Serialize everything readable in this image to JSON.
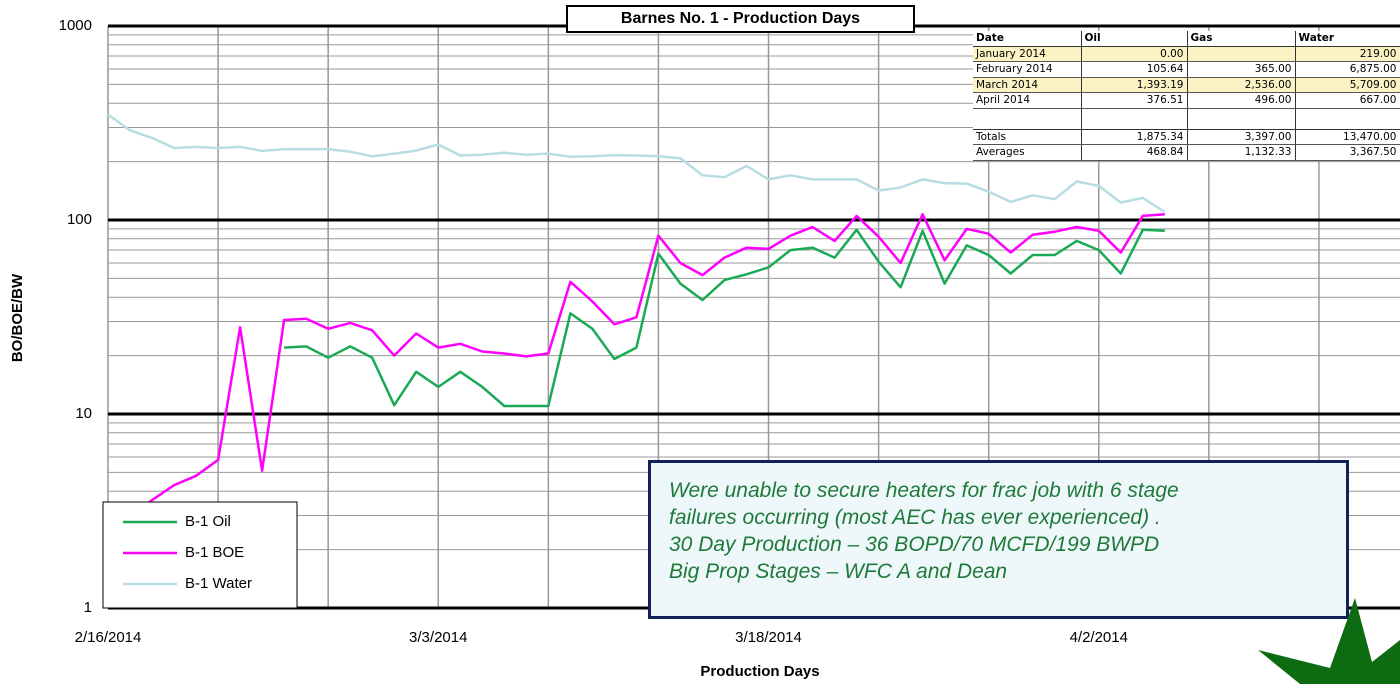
{
  "chart_data": {
    "type": "line",
    "title": "Barnes No. 1 - Production Days",
    "xlabel": "Production Days",
    "ylabel": "BO/BOE/BW",
    "log_y": true,
    "grid": true,
    "legend": "lower left",
    "x": [
      "2014-02-16",
      "2014-02-17",
      "2014-02-18",
      "2014-02-19",
      "2014-02-20",
      "2014-02-21",
      "2014-02-22",
      "2014-02-23",
      "2014-02-24",
      "2014-02-25",
      "2014-02-26",
      "2014-02-27",
      "2014-02-28",
      "2014-03-01",
      "2014-03-02",
      "2014-03-03",
      "2014-03-04",
      "2014-03-05",
      "2014-03-06",
      "2014-03-07",
      "2014-03-08",
      "2014-03-09",
      "2014-03-10",
      "2014-03-11",
      "2014-03-12",
      "2014-03-13",
      "2014-03-14",
      "2014-03-15",
      "2014-03-16",
      "2014-03-17",
      "2014-03-18",
      "2014-03-19",
      "2014-03-20",
      "2014-03-21",
      "2014-03-22",
      "2014-03-23",
      "2014-03-24",
      "2014-03-25",
      "2014-03-26",
      "2014-03-27",
      "2014-03-28",
      "2014-03-29",
      "2014-03-30",
      "2014-03-31",
      "2014-04-01",
      "2014-04-02",
      "2014-04-03",
      "2014-04-04",
      "2014-04-05"
    ],
    "series": [
      {
        "name": "B-1 Oil",
        "color": "#1aaa55",
        "values": [
          null,
          null,
          null,
          null,
          null,
          null,
          null,
          null,
          22,
          22.3,
          19.5,
          22.3,
          19.5,
          11.1,
          16.5,
          13.8,
          16.5,
          13.8,
          11,
          11,
          11,
          33,
          27.5,
          19.2,
          22,
          67,
          47,
          38.7,
          49,
          52.5,
          57,
          70,
          72,
          64,
          89,
          61,
          45,
          88,
          47,
          74,
          66,
          53,
          66,
          66,
          78,
          70,
          53,
          89,
          88
        ]
      },
      {
        "name": "B-1 BOE",
        "color": "#ff00ff",
        "values": [
          null,
          3.0,
          3.6,
          4.3,
          4.8,
          5.8,
          28,
          5.1,
          30.5,
          31,
          27.5,
          29.5,
          27,
          20,
          26,
          22,
          23,
          21,
          20.5,
          19.8,
          20.5,
          48,
          38,
          29,
          31.5,
          83,
          60,
          52,
          64,
          72,
          71,
          83,
          92,
          78,
          105,
          82,
          60,
          107,
          62,
          90,
          85,
          68,
          84,
          87,
          92,
          88,
          68,
          105,
          107
        ]
      },
      {
        "name": "B-1 Water",
        "color": "#b7dde3",
        "values": [
          350,
          290,
          265,
          235,
          238,
          235,
          238,
          227,
          232,
          232,
          232,
          225,
          213,
          220,
          228,
          245,
          215,
          217,
          222,
          217,
          220,
          212,
          213,
          216,
          215,
          213,
          208,
          170,
          166,
          190,
          162,
          170,
          162,
          162,
          162,
          142,
          147,
          162,
          155,
          154,
          140,
          124,
          134,
          128,
          158,
          150,
          123,
          130,
          110
        ]
      }
    ],
    "xlim": [
      "2014-02-16",
      "2014-04-16"
    ],
    "xticks": [
      {
        "value": "2014-02-16",
        "label": "2/16/2014"
      },
      {
        "value": "2014-03-03",
        "label": "3/3/2014"
      },
      {
        "value": "2014-03-18",
        "label": "3/18/2014"
      },
      {
        "value": "2014-04-02",
        "label": "4/2/2014"
      }
    ],
    "xminor": [
      "2014-02-21",
      "2014-02-26",
      "2014-03-08",
      "2014-03-13",
      "2014-03-23",
      "2014-03-28",
      "2014-04-07",
      "2014-04-12"
    ],
    "ylim": [
      1,
      1000
    ],
    "yticks": [
      1,
      10,
      100,
      1000
    ],
    "annotation": [
      "Were unable to secure heaters for frac job with 6 stage",
      "failures occurring (most AEC has ever experienced) .",
      "30 Day Production – 36 BOPD/70 MCFD/199 BWPD",
      "Big Prop Stages – WFC A and Dean"
    ]
  },
  "table": {
    "columns": [
      "Date",
      "Oil",
      "Gas",
      "Water"
    ],
    "rows": [
      [
        "January 2014",
        "0.00",
        null,
        "219.00"
      ],
      [
        "February 2014",
        "105.64",
        "365.00",
        "6,875.00"
      ],
      [
        "March 2014",
        "1,393.19",
        "2,536.00",
        "5,709.00"
      ],
      [
        "April 2014",
        "376.51",
        "496.00",
        "667.00"
      ]
    ],
    "highlight_rows": [
      0,
      2
    ],
    "summary": [
      [
        "Totals",
        "1,875.34",
        "3,397.00",
        "13,470.00"
      ],
      [
        "Averages",
        "468.84",
        "1,132.33",
        "3,367.50"
      ]
    ]
  }
}
